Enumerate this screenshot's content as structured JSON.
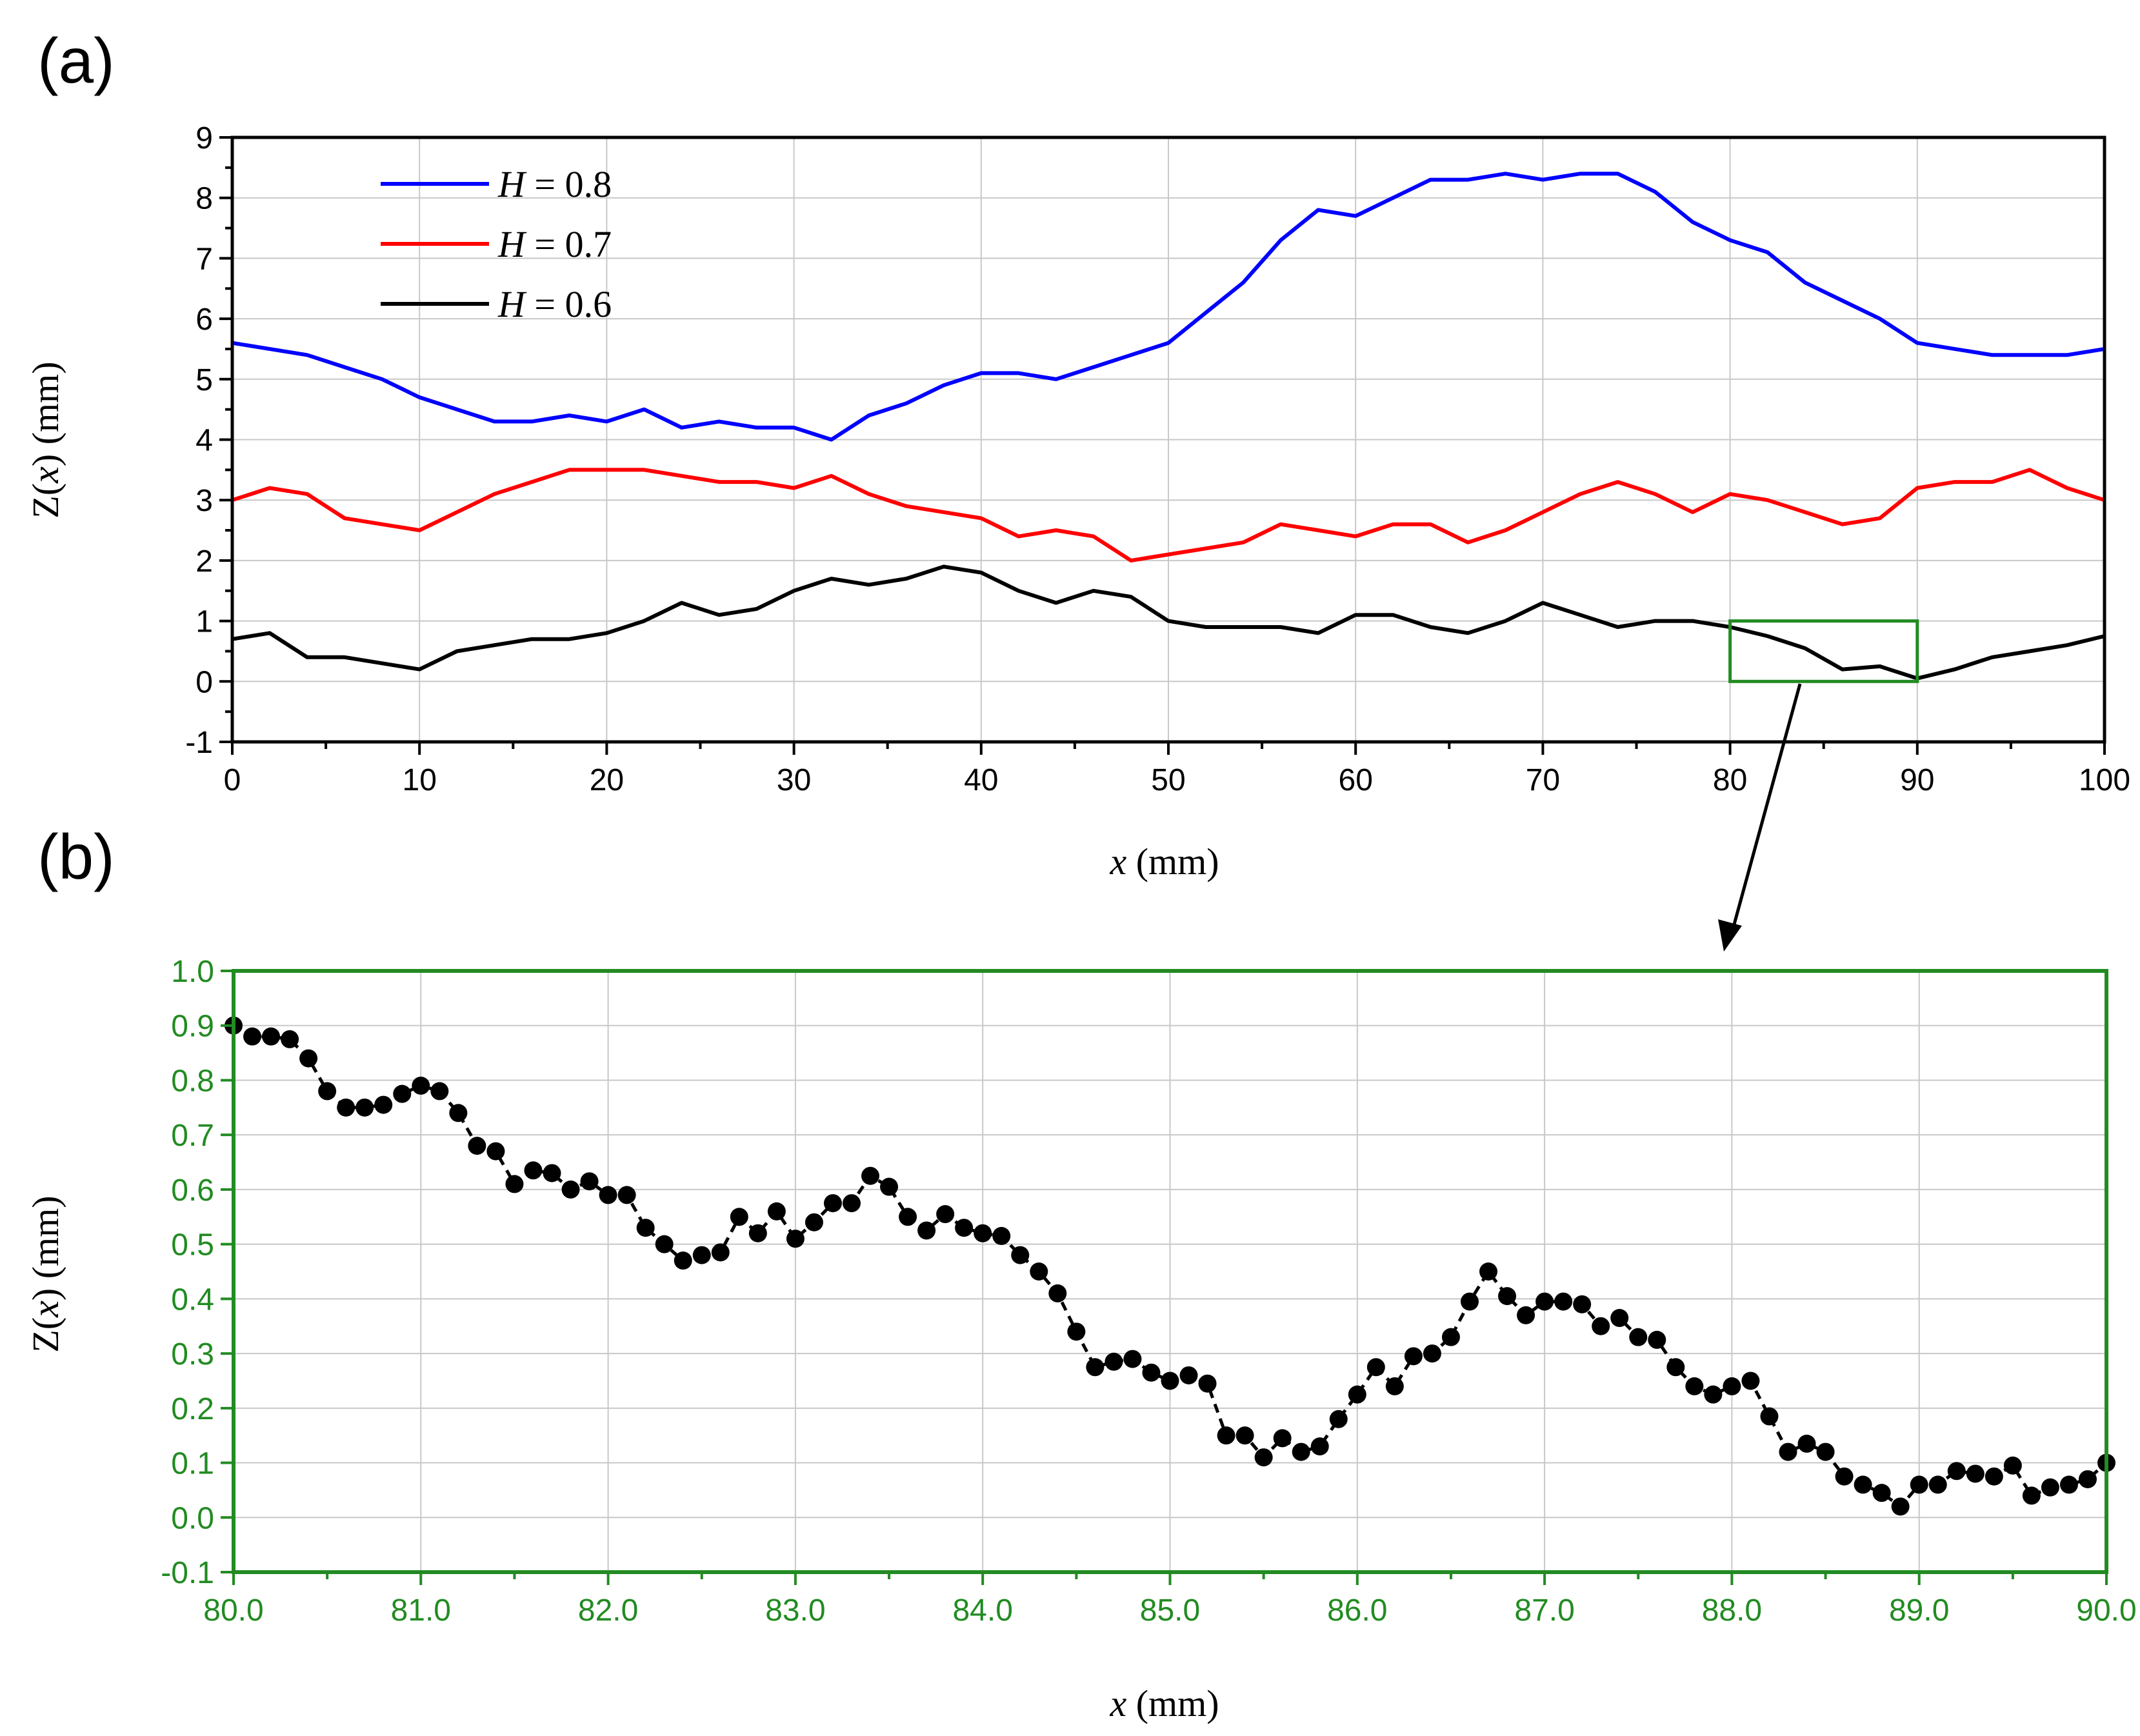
{
  "chart_data": [
    {
      "panel_label": "(a)",
      "type": "line",
      "xlabel": {
        "var": "x",
        "unit": " (mm)"
      },
      "ylabel": {
        "prefix": "Z(",
        "var": "x",
        "suffix": ") (mm)"
      },
      "xlim": [
        0,
        100
      ],
      "ylim": [
        -1,
        9
      ],
      "xticks": [
        0,
        10,
        20,
        30,
        40,
        50,
        60,
        70,
        80,
        90,
        100
      ],
      "yticks": [
        -1,
        0,
        1,
        2,
        3,
        4,
        5,
        6,
        7,
        8,
        9
      ],
      "grid": true,
      "legend_position": "top-left",
      "zoom_box": {
        "x": [
          80,
          90
        ],
        "y": [
          0,
          1
        ],
        "color": "#228B22"
      },
      "series": [
        {
          "name": "H = 0.8",
          "color": "#0000FF",
          "x": [
            0,
            2,
            4,
            6,
            8,
            10,
            12,
            14,
            16,
            18,
            20,
            22,
            24,
            26,
            28,
            30,
            32,
            34,
            36,
            38,
            40,
            42,
            44,
            46,
            48,
            50,
            52,
            54,
            56,
            58,
            60,
            62,
            64,
            66,
            68,
            70,
            72,
            74,
            76,
            78,
            80,
            82,
            84,
            86,
            88,
            90,
            92,
            94,
            96,
            98,
            100
          ],
          "y": [
            5.6,
            5.5,
            5.4,
            5.2,
            5.0,
            4.7,
            4.5,
            4.3,
            4.3,
            4.4,
            4.3,
            4.5,
            4.2,
            4.3,
            4.2,
            4.2,
            4.0,
            4.4,
            4.6,
            4.9,
            5.1,
            5.1,
            5.0,
            5.2,
            5.4,
            5.6,
            6.1,
            6.6,
            7.3,
            7.8,
            7.7,
            8.0,
            8.3,
            8.3,
            8.4,
            8.3,
            8.4,
            8.4,
            8.1,
            7.6,
            7.3,
            7.1,
            6.6,
            6.3,
            6.0,
            5.6,
            5.5,
            5.4,
            5.4,
            5.4,
            5.5
          ]
        },
        {
          "name": "H = 0.7",
          "color": "#FF0000",
          "x": [
            0,
            2,
            4,
            6,
            8,
            10,
            12,
            14,
            16,
            18,
            20,
            22,
            24,
            26,
            28,
            30,
            32,
            34,
            36,
            38,
            40,
            42,
            44,
            46,
            48,
            50,
            52,
            54,
            56,
            58,
            60,
            62,
            64,
            66,
            68,
            70,
            72,
            74,
            76,
            78,
            80,
            82,
            84,
            86,
            88,
            90,
            92,
            94,
            96,
            98,
            100
          ],
          "y": [
            3.0,
            3.2,
            3.1,
            2.7,
            2.6,
            2.5,
            2.8,
            3.1,
            3.3,
            3.5,
            3.5,
            3.5,
            3.4,
            3.3,
            3.3,
            3.2,
            3.4,
            3.1,
            2.9,
            2.8,
            2.7,
            2.4,
            2.5,
            2.4,
            2.0,
            2.1,
            2.2,
            2.3,
            2.6,
            2.5,
            2.4,
            2.6,
            2.6,
            2.3,
            2.5,
            2.8,
            3.1,
            3.3,
            3.1,
            2.8,
            3.1,
            3.0,
            2.8,
            2.6,
            2.7,
            3.2,
            3.3,
            3.3,
            3.5,
            3.2,
            3.0
          ]
        },
        {
          "name": "H = 0.6",
          "color": "#000000",
          "x": [
            0,
            2,
            4,
            6,
            8,
            10,
            12,
            14,
            16,
            18,
            20,
            22,
            24,
            26,
            28,
            30,
            32,
            34,
            36,
            38,
            40,
            42,
            44,
            46,
            48,
            50,
            52,
            54,
            56,
            58,
            60,
            62,
            64,
            66,
            68,
            70,
            72,
            74,
            76,
            78,
            80,
            82,
            84,
            86,
            88,
            90,
            92,
            94,
            96,
            98,
            100
          ],
          "y": [
            0.7,
            0.8,
            0.4,
            0.4,
            0.3,
            0.2,
            0.5,
            0.6,
            0.7,
            0.7,
            0.8,
            1.0,
            1.3,
            1.1,
            1.2,
            1.5,
            1.7,
            1.6,
            1.7,
            1.9,
            1.8,
            1.5,
            1.3,
            1.5,
            1.4,
            1.0,
            0.9,
            0.9,
            0.9,
            0.8,
            1.1,
            1.1,
            0.9,
            0.8,
            1.0,
            1.3,
            1.1,
            0.9,
            1.0,
            1.0,
            0.9,
            0.75,
            0.55,
            0.2,
            0.25,
            0.05,
            0.2,
            0.4,
            0.5,
            0.6,
            0.75
          ]
        }
      ]
    },
    {
      "panel_label": "(b)",
      "type": "line",
      "xlabel": {
        "var": "x",
        "unit": " (mm)"
      },
      "ylabel": {
        "prefix": "Z(",
        "var": "x",
        "suffix": ") (mm)"
      },
      "xlim": [
        80,
        90
      ],
      "ylim": [
        -0.1,
        1.0
      ],
      "xticks": [
        80,
        81,
        82,
        83,
        84,
        85,
        86,
        87,
        88,
        89,
        90
      ],
      "yticks": [
        -0.1,
        0.0,
        0.1,
        0.2,
        0.3,
        0.4,
        0.5,
        0.6,
        0.7,
        0.8,
        0.9,
        1.0
      ],
      "grid": true,
      "axis_color": "#228B22",
      "series": [
        {
          "name": "",
          "color": "#000000",
          "marker": "circle",
          "line_style": "dashed",
          "x": [
            80.0,
            80.1,
            80.2,
            80.3,
            80.4,
            80.5,
            80.6,
            80.7,
            80.8,
            80.9,
            81.0,
            81.1,
            81.2,
            81.3,
            81.4,
            81.5,
            81.6,
            81.7,
            81.8,
            81.9,
            82.0,
            82.1,
            82.2,
            82.3,
            82.4,
            82.5,
            82.6,
            82.7,
            82.8,
            82.9,
            83.0,
            83.1,
            83.2,
            83.3,
            83.4,
            83.5,
            83.6,
            83.7,
            83.8,
            83.9,
            84.0,
            84.1,
            84.2,
            84.3,
            84.4,
            84.5,
            84.6,
            84.7,
            84.8,
            84.9,
            85.0,
            85.1,
            85.2,
            85.3,
            85.4,
            85.5,
            85.6,
            85.7,
            85.8,
            85.9,
            86.0,
            86.1,
            86.2,
            86.3,
            86.4,
            86.5,
            86.6,
            86.7,
            86.8,
            86.9,
            87.0,
            87.1,
            87.2,
            87.3,
            87.4,
            87.5,
            87.6,
            87.7,
            87.8,
            87.9,
            88.0,
            88.1,
            88.2,
            88.3,
            88.4,
            88.5,
            88.6,
            88.7,
            88.8,
            88.9,
            89.0,
            89.1,
            89.2,
            89.3,
            89.4,
            89.5,
            89.6,
            89.7,
            89.8,
            89.9,
            90.0
          ],
          "y": [
            0.9,
            0.88,
            0.88,
            0.875,
            0.84,
            0.78,
            0.75,
            0.75,
            0.755,
            0.775,
            0.79,
            0.78,
            0.74,
            0.68,
            0.67,
            0.61,
            0.635,
            0.63,
            0.6,
            0.615,
            0.59,
            0.59,
            0.53,
            0.5,
            0.47,
            0.48,
            0.485,
            0.55,
            0.52,
            0.56,
            0.51,
            0.54,
            0.575,
            0.575,
            0.625,
            0.605,
            0.55,
            0.525,
            0.555,
            0.53,
            0.52,
            0.515,
            0.48,
            0.45,
            0.41,
            0.34,
            0.275,
            0.285,
            0.29,
            0.265,
            0.25,
            0.26,
            0.245,
            0.15,
            0.15,
            0.11,
            0.145,
            0.12,
            0.13,
            0.18,
            0.225,
            0.275,
            0.24,
            0.295,
            0.3,
            0.33,
            0.395,
            0.45,
            0.405,
            0.37,
            0.395,
            0.395,
            0.39,
            0.35,
            0.365,
            0.33,
            0.325,
            0.275,
            0.24,
            0.225,
            0.24,
            0.25,
            0.185,
            0.12,
            0.135,
            0.12,
            0.075,
            0.06,
            0.045,
            0.02,
            0.06,
            0.06,
            0.085,
            0.08,
            0.075,
            0.095,
            0.04,
            0.055,
            0.06,
            0.07,
            0.1
          ]
        }
      ]
    }
  ]
}
